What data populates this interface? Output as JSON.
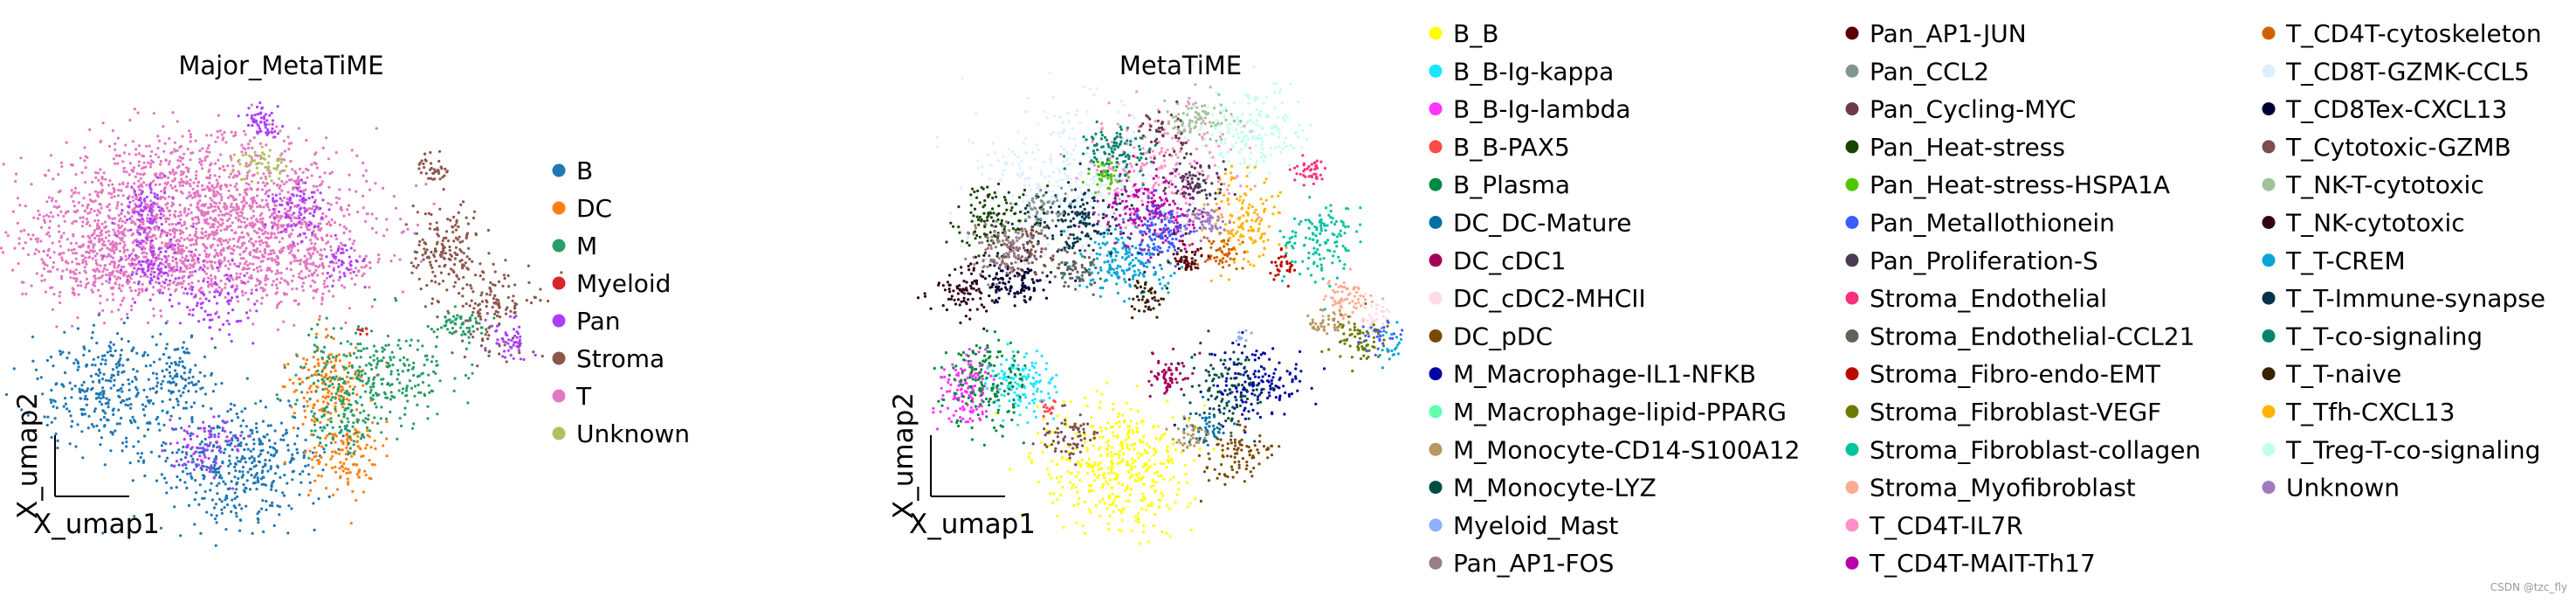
{
  "chart_data": [
    {
      "type": "scatter",
      "title": "Major_MetaTiME",
      "xlabel": "X_umap1",
      "ylabel": "X_umap2",
      "grid": false,
      "legend": "right",
      "categories": [
        {
          "name": "B",
          "color": "#1f77b4"
        },
        {
          "name": "DC",
          "color": "#ff7f0e"
        },
        {
          "name": "M",
          "color": "#279e68"
        },
        {
          "name": "Myeloid",
          "color": "#d62728"
        },
        {
          "name": "Pan",
          "color": "#aa40fc"
        },
        {
          "name": "Stroma",
          "color": "#8c564b"
        },
        {
          "name": "T",
          "color": "#e377c2"
        },
        {
          "name": "Unknown",
          "color": "#b5bd61"
        }
      ]
    },
    {
      "type": "scatter",
      "title": "MetaTiME",
      "xlabel": "X_umap1",
      "ylabel": "X_umap2",
      "grid": false,
      "legend": "right, 3 columns",
      "categories": [
        {
          "name": "B_B",
          "color": "#ffff00"
        },
        {
          "name": "B_B-Ig-kappa",
          "color": "#1ce6ff"
        },
        {
          "name": "B_B-Ig-lambda",
          "color": "#ff34ff"
        },
        {
          "name": "B_B-PAX5",
          "color": "#ff4a46"
        },
        {
          "name": "B_Plasma",
          "color": "#008941"
        },
        {
          "name": "DC_DC-Mature",
          "color": "#006fa6"
        },
        {
          "name": "DC_cDC1",
          "color": "#a30059"
        },
        {
          "name": "DC_cDC2-MHCII",
          "color": "#ffdbe5"
        },
        {
          "name": "DC_pDC",
          "color": "#7a4900"
        },
        {
          "name": "M_Macrophage-IL1-NFKB",
          "color": "#0000a6"
        },
        {
          "name": "M_Macrophage-lipid-PPARG",
          "color": "#63ffac"
        },
        {
          "name": "M_Monocyte-CD14-S100A12",
          "color": "#b79762"
        },
        {
          "name": "M_Monocyte-LYZ",
          "color": "#004d43"
        },
        {
          "name": "Myeloid_Mast",
          "color": "#8fb0ff"
        },
        {
          "name": "Pan_AP1-FOS",
          "color": "#997d87"
        },
        {
          "name": "Pan_AP1-JUN",
          "color": "#5a0007"
        },
        {
          "name": "Pan_CCL2",
          "color": "#809693"
        },
        {
          "name": "Pan_Cycling-MYC",
          "color": "#6a3a4c"
        },
        {
          "name": "Pan_Heat-stress",
          "color": "#1b4400"
        },
        {
          "name": "Pan_Heat-stress-HSPA1A",
          "color": "#4fc601"
        },
        {
          "name": "Pan_Metallothionein",
          "color": "#3b5dff"
        },
        {
          "name": "Pan_Proliferation-S",
          "color": "#4a3b53"
        },
        {
          "name": "Stroma_Endothelial",
          "color": "#ff2f80"
        },
        {
          "name": "Stroma_Endothelial-CCL21",
          "color": "#61615a"
        },
        {
          "name": "Stroma_Fibro-endo-EMT",
          "color": "#ba0900"
        },
        {
          "name": "Stroma_Fibroblast-VEGF",
          "color": "#6b7900"
        },
        {
          "name": "Stroma_Fibroblast-collagen",
          "color": "#00c2a0"
        },
        {
          "name": "Stroma_Myofibroblast",
          "color": "#ffaa92"
        },
        {
          "name": "T_CD4T-IL7R",
          "color": "#ff90c9"
        },
        {
          "name": "T_CD4T-MAIT-Th17",
          "color": "#b903aa"
        },
        {
          "name": "T_CD4T-cytoskeleton",
          "color": "#d16100"
        },
        {
          "name": "T_CD8T-GZMK-CCL5",
          "color": "#ddefff"
        },
        {
          "name": "T_CD8Tex-CXCL13",
          "color": "#000035"
        },
        {
          "name": "T_Cytotoxic-GZMB",
          "color": "#7b4f4b"
        },
        {
          "name": "T_NK-T-cytotoxic",
          "color": "#a1c299"
        },
        {
          "name": "T_NK-cytotoxic",
          "color": "#300018"
        },
        {
          "name": "T_T-CREM",
          "color": "#0aa6d8"
        },
        {
          "name": "T_T-Immune-synapse",
          "color": "#013349"
        },
        {
          "name": "T_T-co-signaling",
          "color": "#00846f"
        },
        {
          "name": "T_T-naive",
          "color": "#372101"
        },
        {
          "name": "T_Tfh-CXCL13",
          "color": "#ffb500"
        },
        {
          "name": "T_Treg-T-co-signaling",
          "color": "#c2ffed"
        },
        {
          "name": "Unknown",
          "color": "#a079bf"
        }
      ]
    }
  ],
  "watermark": "CSDN @tzc_fly"
}
